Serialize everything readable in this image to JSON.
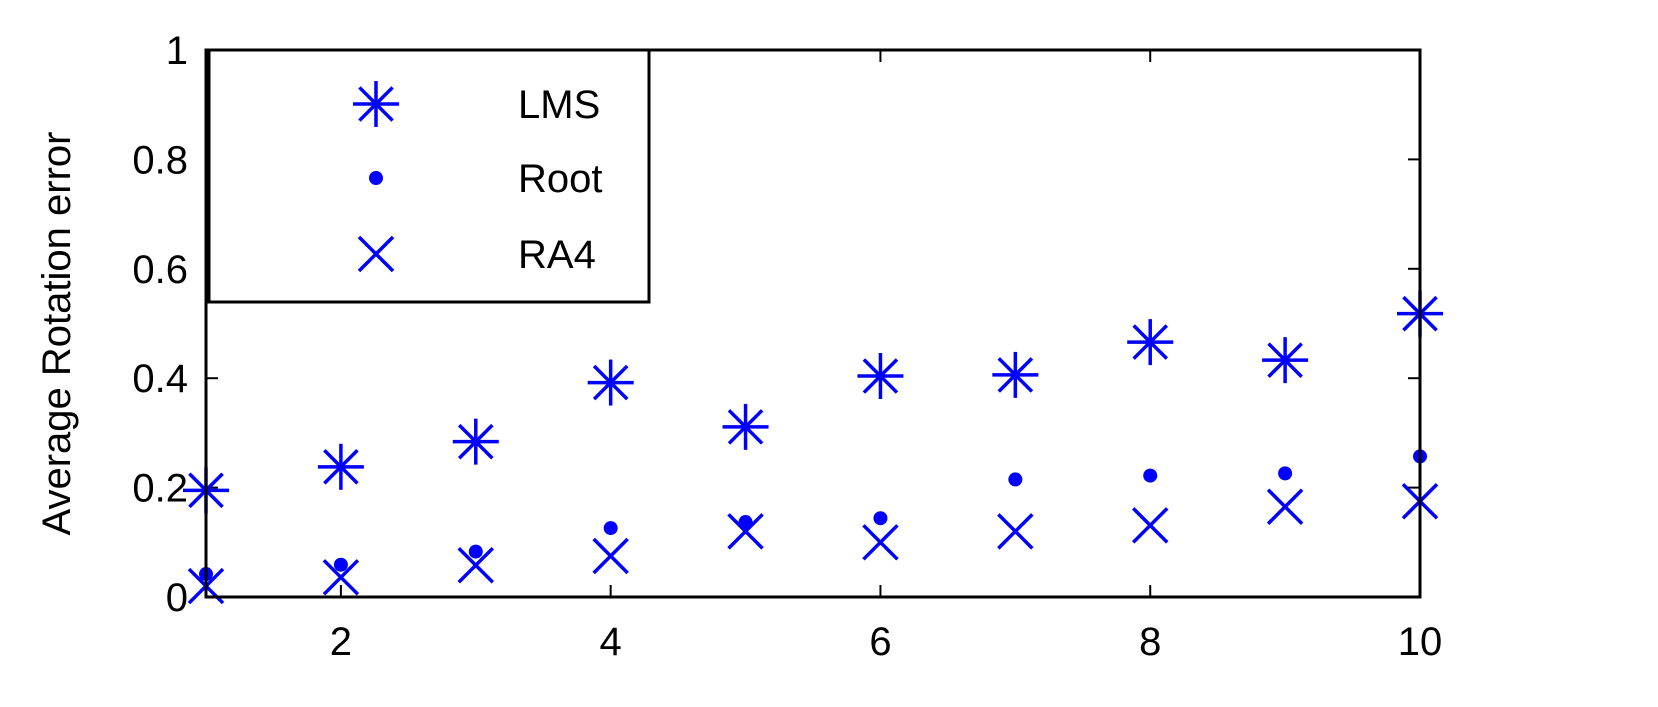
{
  "chart_data": {
    "type": "scatter",
    "ylabel": "Average Rotation error",
    "xlim": [
      1,
      10
    ],
    "ylim": [
      0,
      1
    ],
    "x_ticks": [
      "2",
      "4",
      "6",
      "8",
      "10"
    ],
    "y_ticks": [
      "0",
      "0.2",
      "0.4",
      "0.6",
      "0.8",
      "1"
    ],
    "grid": false,
    "legend_position": "top-left",
    "series": [
      {
        "name": "LMS",
        "marker": "asterisk",
        "color": "#0000ff",
        "x": [
          1,
          2,
          3,
          4,
          5,
          6,
          7,
          8,
          9,
          10
        ],
        "y": [
          0.195,
          0.238,
          0.284,
          0.392,
          0.311,
          0.404,
          0.406,
          0.466,
          0.433,
          0.518
        ]
      },
      {
        "name": "Root",
        "marker": "dot",
        "color": "#0000ff",
        "x": [
          1,
          2,
          3,
          4,
          5,
          6,
          7,
          8,
          9,
          10
        ],
        "y": [
          0.042,
          0.059,
          0.083,
          0.126,
          0.137,
          0.144,
          0.215,
          0.222,
          0.226,
          0.257
        ]
      },
      {
        "name": "RA4",
        "marker": "x",
        "color": "#0000ff",
        "x": [
          1,
          2,
          3,
          4,
          5,
          6,
          7,
          8,
          9,
          10
        ],
        "y": [
          0.02,
          0.036,
          0.058,
          0.075,
          0.12,
          0.1,
          0.12,
          0.131,
          0.165,
          0.175
        ]
      }
    ]
  }
}
